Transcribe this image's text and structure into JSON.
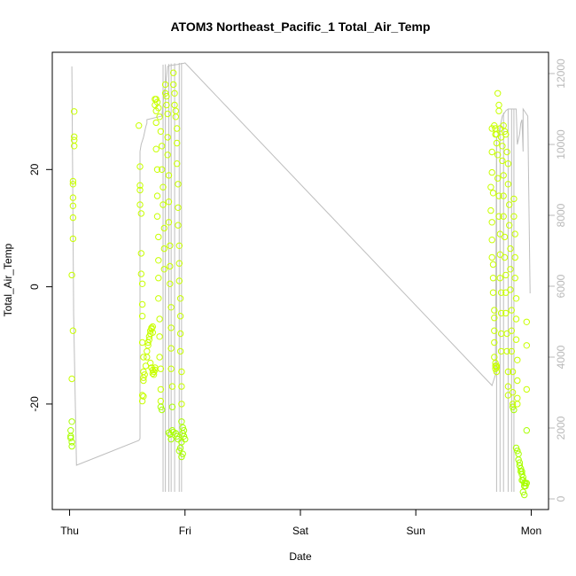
{
  "chart_data": {
    "type": "scatter",
    "title": "ATOM3 Northeast_Pacific_1 Total_Air_Temp",
    "xlabel": "Date",
    "ylabel": "Total_Air_Temp",
    "x_ticks": [
      {
        "label": "Thu",
        "value": 0
      },
      {
        "label": "Fri",
        "value": 1
      },
      {
        "label": "Sat",
        "value": 2
      },
      {
        "label": "Sun",
        "value": 3
      },
      {
        "label": "Mon",
        "value": 4
      }
    ],
    "xlim": [
      -0.15,
      4.15
    ],
    "ylim": [
      -38,
      40
    ],
    "y_ticks": [
      -20,
      0,
      20
    ],
    "y2lim": [
      -300,
      12600
    ],
    "y2_ticks": [
      0,
      2000,
      4000,
      6000,
      8000,
      10000,
      12000
    ],
    "grid": false,
    "point_color_low": "#a8ff00",
    "point_color_high": "#c8ff00",
    "line_color": "#bebebe",
    "secondary_line": {
      "x": [
        0.02,
        0.02,
        0.035,
        0.06,
        0.6,
        0.61,
        0.61,
        0.62,
        0.64,
        0.66,
        0.67,
        0.67,
        0.8,
        0.82,
        0.83,
        0.85,
        0.86,
        0.88,
        0.9,
        0.92,
        0.94,
        0.95,
        0.97,
        0.99,
        1.0,
        3.66,
        3.68,
        3.69,
        3.7,
        3.72,
        3.73,
        3.75,
        3.77,
        3.78,
        3.8,
        3.82,
        3.83,
        3.85,
        3.87,
        3.88,
        3.9,
        3.91,
        3.92,
        3.93,
        3.93,
        3.95,
        3.97,
        3.99
      ],
      "y": [
        12200,
        12200,
        5200,
        950,
        1650,
        1700,
        9800,
        10000,
        10200,
        10500,
        10600,
        10700,
        10800,
        11500,
        11600,
        12200,
        12220,
        12230,
        12240,
        12250,
        12260,
        12270,
        12280,
        12290,
        12300,
        3200,
        3400,
        3500,
        10200,
        10300,
        10500,
        10800,
        10900,
        10950,
        11000,
        11000,
        11000,
        11000,
        11000,
        10000,
        10300,
        10600,
        10700,
        9800,
        11000,
        10900,
        10800,
        5800
      ]
    },
    "secondary_spikes": [
      {
        "x": 0.81,
        "top": 12250,
        "bottom": 200
      },
      {
        "x": 0.83,
        "top": 12260,
        "bottom": 200
      },
      {
        "x": 0.86,
        "top": 12270,
        "bottom": 200
      },
      {
        "x": 0.88,
        "top": 12280,
        "bottom": 200
      },
      {
        "x": 0.91,
        "top": 12290,
        "bottom": 200
      },
      {
        "x": 0.95,
        "top": 12300,
        "bottom": 200
      },
      {
        "x": 0.97,
        "top": 12300,
        "bottom": 200
      },
      {
        "x": 3.7,
        "top": 10200,
        "bottom": 200
      },
      {
        "x": 3.73,
        "top": 10500,
        "bottom": 200
      },
      {
        "x": 3.76,
        "top": 10900,
        "bottom": 200
      },
      {
        "x": 3.8,
        "top": 11000,
        "bottom": 200
      },
      {
        "x": 3.83,
        "top": 11000,
        "bottom": 200
      },
      {
        "x": 3.85,
        "top": 11000,
        "bottom": 200
      }
    ],
    "points": [
      [
        0.01,
        -24.5
      ],
      [
        0.01,
        -25.5
      ],
      [
        0.02,
        -26.5
      ],
      [
        0.02,
        -27.2
      ],
      [
        0.01,
        -25.8
      ],
      [
        0.02,
        -23
      ],
      [
        0.02,
        -15.7
      ],
      [
        0.03,
        -7.5
      ],
      [
        0.02,
        2
      ],
      [
        0.03,
        8.2
      ],
      [
        0.03,
        11.8
      ],
      [
        0.03,
        13.8
      ],
      [
        0.03,
        15.2
      ],
      [
        0.03,
        17.5
      ],
      [
        0.03,
        18
      ],
      [
        0.04,
        24
      ],
      [
        0.04,
        25
      ],
      [
        0.04,
        25.6
      ],
      [
        0.04,
        29.9
      ],
      [
        0.6,
        27.5
      ],
      [
        0.61,
        20.5
      ],
      [
        0.61,
        17.3
      ],
      [
        0.61,
        16.5
      ],
      [
        0.61,
        14
      ],
      [
        0.62,
        12.5
      ],
      [
        0.62,
        5.7
      ],
      [
        0.62,
        2.2
      ],
      [
        0.63,
        0.5
      ],
      [
        0.63,
        -3
      ],
      [
        0.63,
        -5
      ],
      [
        0.63,
        -9.5
      ],
      [
        0.64,
        -12
      ],
      [
        0.64,
        -14.5
      ],
      [
        0.64,
        -15.5
      ],
      [
        0.64,
        -16
      ],
      [
        0.63,
        -18.5
      ],
      [
        0.63,
        -19.5
      ],
      [
        0.64,
        -18.7
      ],
      [
        0.65,
        -15
      ],
      [
        0.66,
        -13.5
      ],
      [
        0.67,
        -12
      ],
      [
        0.67,
        -11
      ],
      [
        0.68,
        -10
      ],
      [
        0.68,
        -9.5
      ],
      [
        0.69,
        -9
      ],
      [
        0.69,
        -8.5
      ],
      [
        0.7,
        -8
      ],
      [
        0.7,
        -7.5
      ],
      [
        0.71,
        -7.2
      ],
      [
        0.71,
        -7
      ],
      [
        0.72,
        -6.8
      ],
      [
        0.72,
        -7.8
      ],
      [
        0.7,
        -13
      ],
      [
        0.71,
        -13.8
      ],
      [
        0.72,
        -14.2
      ],
      [
        0.73,
        -14.5
      ],
      [
        0.74,
        -14.2
      ],
      [
        0.74,
        -13.8
      ],
      [
        0.73,
        -15
      ],
      [
        0.72,
        -14.8
      ],
      [
        0.74,
        32
      ],
      [
        0.74,
        31
      ],
      [
        0.75,
        30
      ],
      [
        0.75,
        28
      ],
      [
        0.75,
        23.5
      ],
      [
        0.76,
        20
      ],
      [
        0.76,
        15.5
      ],
      [
        0.76,
        12
      ],
      [
        0.77,
        8.5
      ],
      [
        0.77,
        4.5
      ],
      [
        0.77,
        1.5
      ],
      [
        0.77,
        -2
      ],
      [
        0.78,
        -5.5
      ],
      [
        0.78,
        -8.5
      ],
      [
        0.78,
        -12
      ],
      [
        0.79,
        -14
      ],
      [
        0.79,
        -17.5
      ],
      [
        0.79,
        -19.5
      ],
      [
        0.79,
        -20.5
      ],
      [
        0.8,
        -21
      ],
      [
        0.75,
        32
      ],
      [
        0.76,
        31.5
      ],
      [
        0.77,
        30.5
      ],
      [
        0.78,
        29
      ],
      [
        0.79,
        26.5
      ],
      [
        0.8,
        24
      ],
      [
        0.8,
        20
      ],
      [
        0.81,
        17
      ],
      [
        0.81,
        14
      ],
      [
        0.82,
        10
      ],
      [
        0.82,
        6.5
      ],
      [
        0.82,
        3
      ],
      [
        0.83,
        34.5
      ],
      [
        0.83,
        33
      ],
      [
        0.84,
        32.5
      ],
      [
        0.84,
        31
      ],
      [
        0.85,
        29.5
      ],
      [
        0.85,
        25.5
      ],
      [
        0.85,
        22.5
      ],
      [
        0.86,
        19
      ],
      [
        0.86,
        14.5
      ],
      [
        0.86,
        11
      ],
      [
        0.87,
        7
      ],
      [
        0.87,
        3.5
      ],
      [
        0.87,
        0.5
      ],
      [
        0.88,
        -3.5
      ],
      [
        0.88,
        -7
      ],
      [
        0.88,
        -10.5
      ],
      [
        0.88,
        -14
      ],
      [
        0.89,
        -17
      ],
      [
        0.89,
        -20.5
      ],
      [
        0.9,
        36.5
      ],
      [
        0.9,
        34.5
      ],
      [
        0.91,
        33
      ],
      [
        0.91,
        31
      ],
      [
        0.92,
        30
      ],
      [
        0.92,
        29
      ],
      [
        0.93,
        27
      ],
      [
        0.93,
        24.5
      ],
      [
        0.93,
        21
      ],
      [
        0.94,
        17.5
      ],
      [
        0.94,
        13.5
      ],
      [
        0.94,
        10.5
      ],
      [
        0.95,
        7
      ],
      [
        0.95,
        4
      ],
      [
        0.95,
        1
      ],
      [
        0.96,
        -2
      ],
      [
        0.96,
        -5
      ],
      [
        0.96,
        -8
      ],
      [
        0.96,
        -11
      ],
      [
        0.97,
        -14.5
      ],
      [
        0.97,
        -17
      ],
      [
        0.97,
        -20
      ],
      [
        0.97,
        -23
      ],
      [
        0.98,
        -24
      ],
      [
        0.98,
        -25
      ],
      [
        0.99,
        -24.5
      ],
      [
        0.99,
        -25.5
      ],
      [
        1.0,
        -26
      ],
      [
        0.97,
        -26.5
      ],
      [
        0.96,
        -27.5
      ],
      [
        0.95,
        -28
      ],
      [
        0.97,
        -29
      ],
      [
        0.98,
        -28.5
      ],
      [
        0.94,
        -26
      ],
      [
        0.93,
        -25.5
      ],
      [
        0.92,
        -25
      ],
      [
        0.9,
        -24.8
      ],
      [
        0.89,
        -24.5
      ],
      [
        0.88,
        -26
      ],
      [
        0.87,
        -25.2
      ],
      [
        0.86,
        -24.9
      ],
      [
        3.65,
        17
      ],
      [
        3.65,
        13
      ],
      [
        3.66,
        11
      ],
      [
        3.66,
        8
      ],
      [
        3.66,
        5
      ],
      [
        3.67,
        3.8
      ],
      [
        3.67,
        1.5
      ],
      [
        3.67,
        -1
      ],
      [
        3.68,
        -4
      ],
      [
        3.68,
        -5.3
      ],
      [
        3.68,
        -7.5
      ],
      [
        3.68,
        -9.5
      ],
      [
        3.68,
        -12
      ],
      [
        3.69,
        -13.5
      ],
      [
        3.69,
        -14
      ],
      [
        3.69,
        -13
      ],
      [
        3.7,
        -13.5
      ],
      [
        3.7,
        -14.5
      ],
      [
        3.7,
        -13.8
      ],
      [
        3.66,
        27
      ],
      [
        3.66,
        23
      ],
      [
        3.66,
        19.5
      ],
      [
        3.67,
        16
      ],
      [
        3.68,
        27.5
      ],
      [
        3.69,
        27
      ],
      [
        3.69,
        26
      ],
      [
        3.7,
        26
      ],
      [
        3.7,
        24.5
      ],
      [
        3.71,
        22.5
      ],
      [
        3.71,
        18.5
      ],
      [
        3.72,
        15.5
      ],
      [
        3.72,
        12
      ],
      [
        3.73,
        9
      ],
      [
        3.73,
        5.5
      ],
      [
        3.73,
        1.5
      ],
      [
        3.74,
        -1
      ],
      [
        3.74,
        -4.5
      ],
      [
        3.74,
        -8
      ],
      [
        3.74,
        -11
      ],
      [
        3.71,
        33
      ],
      [
        3.72,
        31
      ],
      [
        3.72,
        30
      ],
      [
        3.73,
        27
      ],
      [
        3.74,
        25.5
      ],
      [
        3.75,
        24
      ],
      [
        3.75,
        21.5
      ],
      [
        3.76,
        19
      ],
      [
        3.76,
        15.5
      ],
      [
        3.76,
        12
      ],
      [
        3.77,
        8.5
      ],
      [
        3.77,
        5
      ],
      [
        3.78,
        2
      ],
      [
        3.78,
        -1
      ],
      [
        3.78,
        -4.5
      ],
      [
        3.79,
        -8
      ],
      [
        3.79,
        -11
      ],
      [
        3.8,
        -14.5
      ],
      [
        3.8,
        -17
      ],
      [
        3.8,
        -18.5
      ],
      [
        3.76,
        27.5
      ],
      [
        3.77,
        26.5
      ],
      [
        3.78,
        26
      ],
      [
        3.79,
        23
      ],
      [
        3.8,
        21
      ],
      [
        3.8,
        17.5
      ],
      [
        3.81,
        14
      ],
      [
        3.81,
        10.5
      ],
      [
        3.82,
        6.5
      ],
      [
        3.82,
        3
      ],
      [
        3.82,
        -0.5
      ],
      [
        3.83,
        -4
      ],
      [
        3.83,
        -7.5
      ],
      [
        3.83,
        -11
      ],
      [
        3.84,
        -14.5
      ],
      [
        3.84,
        -18
      ],
      [
        3.84,
        -20.5
      ],
      [
        3.85,
        -21
      ],
      [
        3.84,
        -20
      ],
      [
        3.85,
        15
      ],
      [
        3.85,
        12
      ],
      [
        3.86,
        9
      ],
      [
        3.86,
        5
      ],
      [
        3.86,
        1.5
      ],
      [
        3.87,
        -2
      ],
      [
        3.87,
        -5.5
      ],
      [
        3.87,
        -9
      ],
      [
        3.88,
        -12.5
      ],
      [
        3.88,
        -16
      ],
      [
        3.88,
        -19
      ],
      [
        3.88,
        -20
      ],
      [
        3.87,
        -27.5
      ],
      [
        3.88,
        -28
      ],
      [
        3.89,
        -28.5
      ],
      [
        3.89,
        -29.5
      ],
      [
        3.9,
        -30
      ],
      [
        3.9,
        -30.5
      ],
      [
        3.91,
        -31
      ],
      [
        3.91,
        -31.5
      ],
      [
        3.92,
        -31.5
      ],
      [
        3.92,
        -32
      ],
      [
        3.93,
        -32.5
      ],
      [
        3.93,
        -33
      ],
      [
        3.94,
        -33.5
      ],
      [
        3.94,
        -34
      ],
      [
        3.95,
        -34
      ],
      [
        3.95,
        -33.5
      ],
      [
        3.96,
        -33.5
      ],
      [
        3.93,
        -35
      ],
      [
        3.94,
        -35.5
      ],
      [
        3.92,
        -33
      ],
      [
        3.96,
        -6
      ],
      [
        3.96,
        -10
      ],
      [
        3.96,
        -17.5
      ],
      [
        3.96,
        -24.5
      ]
    ]
  }
}
